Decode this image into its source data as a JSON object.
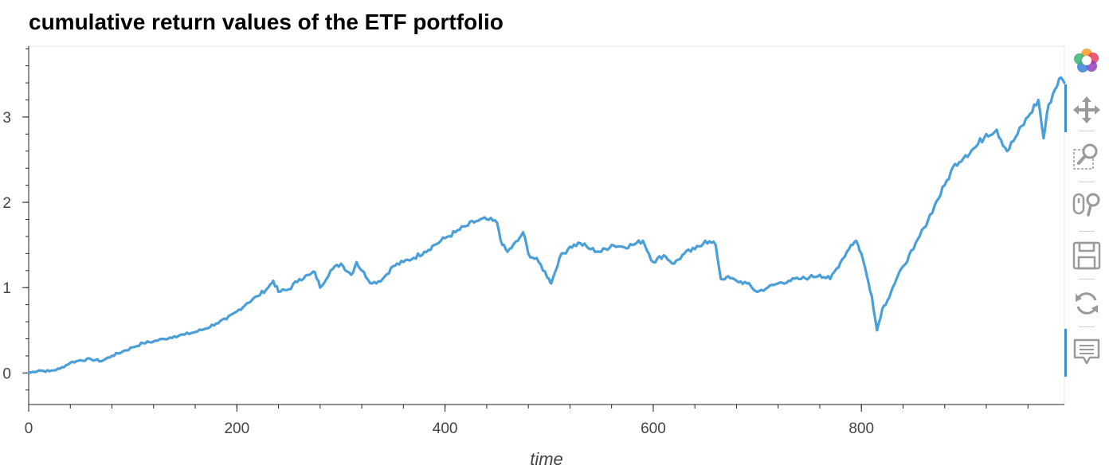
{
  "chart_data": {
    "type": "line",
    "title": "cumulative return values of the ETF portfolio",
    "xlabel": "time",
    "ylabel": "",
    "xlim": [
      0,
      995
    ],
    "ylim": [
      -0.37,
      3.83
    ],
    "x_ticks": [
      0,
      200,
      400,
      600,
      800
    ],
    "y_ticks": [
      0,
      1,
      2,
      3
    ],
    "grid": false,
    "line_color": "#4a9fd8",
    "series": [
      {
        "x": [
          0,
          10,
          20,
          30,
          40,
          50,
          60,
          70,
          80,
          90,
          100,
          110,
          120,
          130,
          140,
          150,
          160,
          170,
          180,
          190,
          200,
          210,
          220,
          230,
          235,
          240,
          250,
          260,
          270,
          275,
          280,
          290,
          300,
          310,
          315,
          320,
          330,
          340,
          350,
          360,
          370,
          380,
          390,
          400,
          410,
          420,
          430,
          440,
          450,
          455,
          460,
          470,
          475,
          480,
          490,
          500,
          502,
          510,
          520,
          530,
          540,
          550,
          560,
          570,
          580,
          590,
          600,
          610,
          620,
          630,
          640,
          650,
          660,
          665,
          670,
          680,
          690,
          700,
          710,
          720,
          730,
          740,
          750,
          760,
          770,
          780,
          790,
          795,
          800,
          805,
          810,
          815,
          820,
          825,
          830,
          840,
          850,
          860,
          870,
          880,
          890,
          900,
          910,
          920,
          930,
          940,
          950,
          960,
          970,
          975,
          980,
          990,
          995
        ],
        "y": [
          0.0,
          0.03,
          0.02,
          0.05,
          0.12,
          0.15,
          0.16,
          0.14,
          0.2,
          0.25,
          0.3,
          0.35,
          0.37,
          0.4,
          0.43,
          0.45,
          0.48,
          0.52,
          0.58,
          0.63,
          0.72,
          0.82,
          0.9,
          1.0,
          1.08,
          0.95,
          0.98,
          1.1,
          1.15,
          1.18,
          1.0,
          1.2,
          1.28,
          1.15,
          1.3,
          1.2,
          1.05,
          1.1,
          1.25,
          1.3,
          1.35,
          1.42,
          1.5,
          1.58,
          1.65,
          1.72,
          1.78,
          1.8,
          1.76,
          1.5,
          1.42,
          1.55,
          1.65,
          1.4,
          1.3,
          1.1,
          1.05,
          1.35,
          1.48,
          1.52,
          1.45,
          1.42,
          1.5,
          1.48,
          1.5,
          1.55,
          1.3,
          1.38,
          1.28,
          1.4,
          1.45,
          1.55,
          1.5,
          1.1,
          1.12,
          1.08,
          1.05,
          0.95,
          1.0,
          1.05,
          1.08,
          1.1,
          1.12,
          1.15,
          1.1,
          1.3,
          1.5,
          1.55,
          1.4,
          1.15,
          0.9,
          0.5,
          0.75,
          0.85,
          1.0,
          1.25,
          1.45,
          1.7,
          1.95,
          2.2,
          2.45,
          2.55,
          2.65,
          2.8,
          2.85,
          2.6,
          2.8,
          3.0,
          3.2,
          2.75,
          3.15,
          3.45,
          3.4
        ]
      }
    ]
  },
  "toolbar": {
    "tools": [
      {
        "name": "bokeh-logo-icon"
      },
      {
        "name": "pan-icon"
      },
      {
        "name": "box-zoom-icon"
      },
      {
        "name": "wheel-zoom-icon"
      },
      {
        "name": "save-icon"
      },
      {
        "name": "reset-icon"
      },
      {
        "name": "hover-icon"
      }
    ]
  }
}
